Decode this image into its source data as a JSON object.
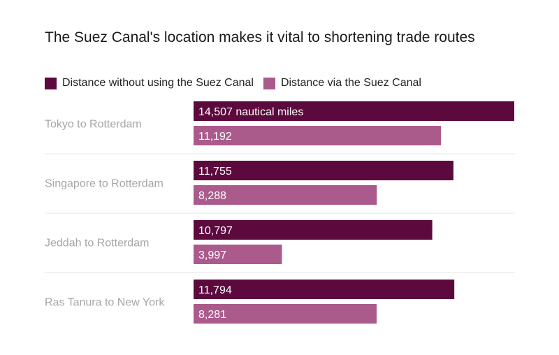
{
  "chart_data": {
    "type": "bar",
    "orientation": "horizontal",
    "title": "The Suez Canal's location makes it vital to shortening trade routes",
    "categories": [
      "Tokyo to Rotterdam",
      "Singapore to Rotterdam",
      "Jeddah to Rotterdam",
      "Ras Tanura to New York"
    ],
    "series": [
      {
        "name": "Distance without using the Suez Canal",
        "values": [
          14507,
          11755,
          10797,
          11794
        ],
        "labels": [
          "14,507 nautical miles",
          "11,755",
          "10,797",
          "11,794"
        ],
        "color": "#5c0a3d"
      },
      {
        "name": "Distance via the Suez Canal",
        "values": [
          11192,
          8288,
          3997,
          8281
        ],
        "labels": [
          "11,192",
          "8,288",
          "3,997",
          "8,281"
        ],
        "color": "#ab5a8c"
      }
    ],
    "xlim": [
      0,
      14507
    ],
    "legend_position": "top-left",
    "grid": false,
    "colors": {
      "separator": "#e6e6e6",
      "category_label": "#a6a6a6",
      "bar_label": "#ffffff"
    }
  }
}
